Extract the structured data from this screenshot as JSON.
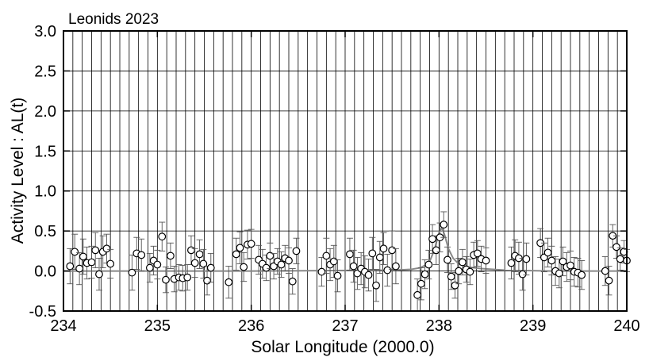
{
  "chart_data": {
    "type": "scatter",
    "title": "Leonids 2023",
    "xlabel": "Solar Longitude (2000.0)",
    "ylabel": "Activity Level : AL(t)",
    "xlim": [
      234,
      240
    ],
    "ylim": [
      -0.5,
      3.0
    ],
    "x_ticks": [
      "234",
      "235",
      "236",
      "237",
      "238",
      "239",
      "240"
    ],
    "y_ticks": [
      "-0.5",
      "0.0",
      "0.5",
      "1.0",
      "1.5",
      "2.0",
      "2.5",
      "3.0"
    ],
    "grid": true,
    "minor_x_step": 0.1,
    "colors": {
      "points": "#000000",
      "model": "#888888",
      "grid": "#000000"
    },
    "observations": [
      {
        "x": 234.07,
        "y": 0.06,
        "err": 0.22
      },
      {
        "x": 234.12,
        "y": 0.24,
        "err": 0.22
      },
      {
        "x": 234.17,
        "y": 0.03,
        "err": 0.2
      },
      {
        "x": 234.21,
        "y": 0.18,
        "err": 0.22
      },
      {
        "x": 234.25,
        "y": 0.1,
        "err": 0.2
      },
      {
        "x": 234.3,
        "y": 0.11,
        "err": 0.2
      },
      {
        "x": 234.34,
        "y": 0.26,
        "err": 0.22
      },
      {
        "x": 234.38,
        "y": -0.04,
        "err": 0.2
      },
      {
        "x": 234.42,
        "y": 0.24,
        "err": 0.2
      },
      {
        "x": 234.46,
        "y": 0.28,
        "err": 0.18
      },
      {
        "x": 234.5,
        "y": 0.09,
        "err": 0.18
      },
      {
        "x": 234.73,
        "y": -0.02,
        "err": 0.22
      },
      {
        "x": 234.78,
        "y": 0.22,
        "err": 0.2
      },
      {
        "x": 234.83,
        "y": 0.2,
        "err": 0.2
      },
      {
        "x": 234.92,
        "y": 0.04,
        "err": 0.18
      },
      {
        "x": 234.96,
        "y": 0.13,
        "err": 0.18
      },
      {
        "x": 235.0,
        "y": 0.08,
        "err": 0.18
      },
      {
        "x": 235.05,
        "y": 0.43,
        "err": 0.18
      },
      {
        "x": 235.09,
        "y": -0.11,
        "err": 0.16
      },
      {
        "x": 235.14,
        "y": 0.19,
        "err": 0.16
      },
      {
        "x": 235.18,
        "y": -0.1,
        "err": 0.16
      },
      {
        "x": 235.23,
        "y": -0.08,
        "err": 0.16
      },
      {
        "x": 235.27,
        "y": -0.09,
        "err": 0.16
      },
      {
        "x": 235.32,
        "y": -0.08,
        "err": 0.16
      },
      {
        "x": 235.36,
        "y": 0.26,
        "err": 0.18
      },
      {
        "x": 235.4,
        "y": 0.1,
        "err": 0.18
      },
      {
        "x": 235.45,
        "y": 0.21,
        "err": 0.18
      },
      {
        "x": 235.49,
        "y": 0.09,
        "err": 0.18
      },
      {
        "x": 235.53,
        "y": -0.12,
        "err": 0.18
      },
      {
        "x": 235.57,
        "y": 0.04,
        "err": 0.18
      },
      {
        "x": 235.76,
        "y": -0.14,
        "err": 0.2
      },
      {
        "x": 235.84,
        "y": 0.21,
        "err": 0.2
      },
      {
        "x": 235.88,
        "y": 0.29,
        "err": 0.2
      },
      {
        "x": 235.92,
        "y": 0.05,
        "err": 0.18
      },
      {
        "x": 235.96,
        "y": 0.33,
        "err": 0.18
      },
      {
        "x": 236.0,
        "y": 0.34,
        "err": 0.18
      },
      {
        "x": 236.08,
        "y": 0.14,
        "err": 0.18
      },
      {
        "x": 236.12,
        "y": 0.09,
        "err": 0.18
      },
      {
        "x": 236.16,
        "y": 0.04,
        "err": 0.16
      },
      {
        "x": 236.2,
        "y": 0.19,
        "err": 0.16
      },
      {
        "x": 236.24,
        "y": 0.06,
        "err": 0.16
      },
      {
        "x": 236.28,
        "y": 0.12,
        "err": 0.16
      },
      {
        "x": 236.32,
        "y": 0.08,
        "err": 0.16
      },
      {
        "x": 236.36,
        "y": 0.16,
        "err": 0.16
      },
      {
        "x": 236.4,
        "y": 0.13,
        "err": 0.16
      },
      {
        "x": 236.44,
        "y": -0.13,
        "err": 0.16
      },
      {
        "x": 236.48,
        "y": 0.25,
        "err": 0.16
      },
      {
        "x": 236.75,
        "y": -0.01,
        "err": 0.18
      },
      {
        "x": 236.8,
        "y": 0.19,
        "err": 0.22
      },
      {
        "x": 236.84,
        "y": 0.08,
        "err": 0.2
      },
      {
        "x": 236.88,
        "y": 0.12,
        "err": 0.2
      },
      {
        "x": 236.92,
        "y": -0.06,
        "err": 0.2
      },
      {
        "x": 237.05,
        "y": 0.21,
        "err": 0.2
      },
      {
        "x": 237.09,
        "y": 0.06,
        "err": 0.2
      },
      {
        "x": 237.13,
        "y": -0.03,
        "err": 0.2
      },
      {
        "x": 237.17,
        "y": 0.03,
        "err": 0.2
      },
      {
        "x": 237.21,
        "y": -0.01,
        "err": 0.2
      },
      {
        "x": 237.25,
        "y": -0.05,
        "err": 0.2
      },
      {
        "x": 237.29,
        "y": 0.22,
        "err": 0.2
      },
      {
        "x": 237.33,
        "y": -0.18,
        "err": 0.2
      },
      {
        "x": 237.37,
        "y": 0.17,
        "err": 0.2
      },
      {
        "x": 237.41,
        "y": 0.28,
        "err": 0.2
      },
      {
        "x": 237.45,
        "y": 0.01,
        "err": 0.2
      },
      {
        "x": 237.5,
        "y": 0.26,
        "err": 0.24
      },
      {
        "x": 237.54,
        "y": 0.06,
        "err": 0.22
      },
      {
        "x": 237.77,
        "y": -0.3,
        "err": 0.2
      },
      {
        "x": 237.81,
        "y": -0.16,
        "err": 0.2
      },
      {
        "x": 237.85,
        "y": -0.04,
        "err": 0.18
      },
      {
        "x": 237.89,
        "y": 0.08,
        "err": 0.18
      },
      {
        "x": 237.93,
        "y": 0.4,
        "err": 0.18
      },
      {
        "x": 237.97,
        "y": 0.26,
        "err": 0.18
      },
      {
        "x": 238.01,
        "y": 0.42,
        "err": 0.18
      },
      {
        "x": 238.05,
        "y": 0.58,
        "err": 0.16
      },
      {
        "x": 238.09,
        "y": 0.14,
        "err": 0.16
      },
      {
        "x": 238.13,
        "y": -0.07,
        "err": 0.16
      },
      {
        "x": 238.17,
        "y": -0.18,
        "err": 0.16
      },
      {
        "x": 238.21,
        "y": 0.0,
        "err": 0.16
      },
      {
        "x": 238.25,
        "y": 0.11,
        "err": 0.16
      },
      {
        "x": 238.29,
        "y": 0.02,
        "err": 0.16
      },
      {
        "x": 238.33,
        "y": -0.01,
        "err": 0.16
      },
      {
        "x": 238.37,
        "y": 0.2,
        "err": 0.16
      },
      {
        "x": 238.41,
        "y": 0.22,
        "err": 0.16
      },
      {
        "x": 238.45,
        "y": 0.15,
        "err": 0.16
      },
      {
        "x": 238.5,
        "y": 0.13,
        "err": 0.16
      },
      {
        "x": 238.77,
        "y": 0.1,
        "err": 0.2
      },
      {
        "x": 238.81,
        "y": 0.19,
        "err": 0.2
      },
      {
        "x": 238.85,
        "y": 0.16,
        "err": 0.2
      },
      {
        "x": 238.89,
        "y": -0.04,
        "err": 0.2
      },
      {
        "x": 238.93,
        "y": 0.15,
        "err": 0.2
      },
      {
        "x": 239.08,
        "y": 0.35,
        "err": 0.18
      },
      {
        "x": 239.12,
        "y": 0.17,
        "err": 0.18
      },
      {
        "x": 239.16,
        "y": 0.23,
        "err": 0.18
      },
      {
        "x": 239.2,
        "y": 0.13,
        "err": 0.18
      },
      {
        "x": 239.24,
        "y": 0.0,
        "err": 0.18
      },
      {
        "x": 239.28,
        "y": -0.03,
        "err": 0.18
      },
      {
        "x": 239.32,
        "y": 0.12,
        "err": 0.18
      },
      {
        "x": 239.36,
        "y": 0.05,
        "err": 0.18
      },
      {
        "x": 239.4,
        "y": 0.07,
        "err": 0.18
      },
      {
        "x": 239.44,
        "y": -0.01,
        "err": 0.18
      },
      {
        "x": 239.48,
        "y": -0.02,
        "err": 0.18
      },
      {
        "x": 239.52,
        "y": -0.05,
        "err": 0.18
      },
      {
        "x": 239.77,
        "y": 0.0,
        "err": 0.18
      },
      {
        "x": 239.81,
        "y": -0.12,
        "err": 0.18
      },
      {
        "x": 239.85,
        "y": 0.44,
        "err": 0.14
      },
      {
        "x": 239.89,
        "y": 0.3,
        "err": 0.14
      },
      {
        "x": 239.93,
        "y": 0.15,
        "err": 0.14
      },
      {
        "x": 239.97,
        "y": 0.24,
        "err": 0.14
      },
      {
        "x": 240.0,
        "y": 0.13,
        "err": 0.14
      }
    ],
    "model_curve": {
      "x": [
        234.0,
        236.0,
        237.5,
        237.7,
        237.8,
        237.85,
        237.9,
        237.95,
        238.0,
        238.03,
        238.06,
        238.1,
        238.15,
        238.2,
        238.3,
        238.45,
        238.7,
        239.2,
        240.0
      ],
      "y": [
        0.0,
        0.0,
        0.01,
        0.02,
        0.04,
        0.07,
        0.12,
        0.26,
        0.48,
        0.54,
        0.45,
        0.28,
        0.16,
        0.1,
        0.05,
        0.03,
        0.01,
        0.0,
        0.0
      ]
    }
  }
}
